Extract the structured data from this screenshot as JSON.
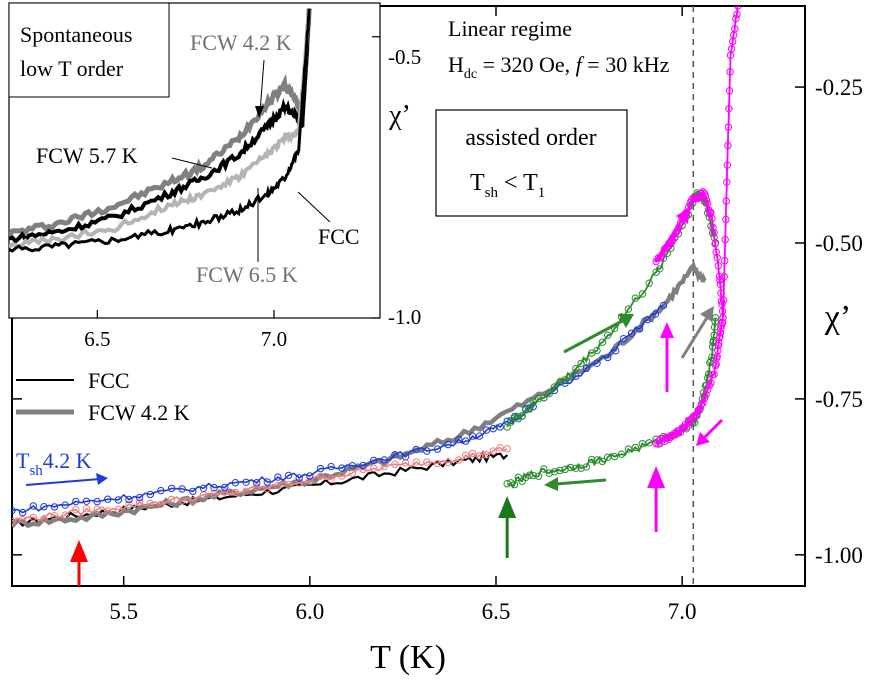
{
  "chart_data": {
    "type": "line",
    "title": "",
    "xlabel": "T (K)",
    "ylabel": "χ’",
    "xlim": [
      5.2,
      7.33
    ],
    "ylim": [
      -1.05,
      -0.12
    ],
    "y_inverted": true,
    "x_ticks": [
      5.5,
      6.0,
      6.5,
      7.0
    ],
    "x_tick_labels": [
      "5.5",
      "6.0",
      "6.5",
      "7.0"
    ],
    "y_ticks": [
      -0.25,
      -0.5,
      -0.75,
      -1.0
    ],
    "y_tick_labels": [
      "-0.25",
      "-0.50",
      "-0.75",
      "-1.00"
    ],
    "grid": false,
    "legend": {
      "placement": "left",
      "entries": [
        {
          "label": "FCC",
          "color": "#000000"
        },
        {
          "label": "FCW 4.2 K",
          "color": "#808080"
        }
      ]
    },
    "reference_line_x": 7.03,
    "annotations": {
      "regime": "Linear regime",
      "field_prefix": "H",
      "field_sub": "dc",
      "field_mid": " = 320 Oe, ",
      "field_f": "f",
      "field_suffix": " = 30 kHz",
      "box_line1": "assisted order",
      "box_line2_a": "T",
      "box_line2_sub_a": "sh",
      "box_line2_b": " < T",
      "box_line2_sub_b": "1",
      "tsh_main": "T",
      "tsh_sub": "sh",
      "tsh_value": "4.2 K"
    },
    "series": [
      {
        "name": "FCC",
        "color": "#000000",
        "x": [
          5.2,
          5.4,
          5.6,
          5.8,
          6.0,
          6.2,
          6.4,
          6.53
        ],
        "y": [
          -0.95,
          -0.935,
          -0.92,
          -0.905,
          -0.89,
          -0.87,
          -0.85,
          -0.84
        ]
      },
      {
        "name": "FCW 4.2 K",
        "color": "#808080",
        "x": [
          5.2,
          5.4,
          5.6,
          5.8,
          6.0,
          6.2,
          6.4,
          6.6,
          6.8,
          6.95,
          7.03,
          7.06
        ],
        "y": [
          -0.95,
          -0.94,
          -0.92,
          -0.9,
          -0.88,
          -0.85,
          -0.81,
          -0.75,
          -0.68,
          -0.6,
          -0.54,
          -0.56
        ]
      },
      {
        "name": "",
        "color": "#f08080",
        "x": [
          5.2,
          5.4,
          5.6,
          5.8,
          6.0,
          6.2,
          6.4,
          6.53
        ],
        "y": [
          -0.945,
          -0.93,
          -0.915,
          -0.9,
          -0.88,
          -0.86,
          -0.845,
          -0.83
        ]
      },
      {
        "name": "",
        "color": "#1e3cdc",
        "x": [
          5.2,
          5.4,
          5.6,
          5.8,
          6.0,
          6.2,
          6.4,
          6.53,
          6.6,
          6.8,
          6.95
        ],
        "y": [
          -0.93,
          -0.915,
          -0.9,
          -0.885,
          -0.87,
          -0.845,
          -0.82,
          -0.79,
          -0.76,
          -0.68,
          -0.6
        ]
      },
      {
        "name": "",
        "color": "#2e8b2e",
        "x": [
          6.53,
          6.6,
          6.7,
          6.8,
          6.93,
          7.0,
          7.04,
          7.06,
          7.08,
          7.09
        ],
        "y": [
          -0.89,
          -0.87,
          -0.86,
          -0.845,
          -0.82,
          -0.8,
          -0.78,
          -0.74,
          -0.68,
          -0.62
        ]
      },
      {
        "name": "",
        "color": "#2e8b2e",
        "x": [
          6.53,
          6.6,
          6.7,
          6.8,
          6.93,
          7.0,
          7.04,
          7.06,
          7.09
        ],
        "y": [
          -0.79,
          -0.76,
          -0.71,
          -0.65,
          -0.55,
          -0.47,
          -0.42,
          -0.43,
          -0.5
        ]
      },
      {
        "name": "",
        "color": "#ff00ff",
        "x": [
          6.93,
          6.97,
          7.0,
          7.03,
          7.06,
          7.09,
          7.1,
          7.11
        ],
        "y": [
          -0.82,
          -0.81,
          -0.8,
          -0.78,
          -0.75,
          -0.7,
          -0.65,
          -0.62
        ]
      },
      {
        "name": "",
        "color": "#ff00ff",
        "x": [
          6.93,
          6.97,
          7.0,
          7.03,
          7.06,
          7.08,
          7.1,
          7.11,
          7.12,
          7.13,
          7.15
        ],
        "y": [
          -0.53,
          -0.5,
          -0.46,
          -0.43,
          -0.42,
          -0.46,
          -0.55,
          -0.62,
          -0.4,
          -0.2,
          -0.12
        ]
      }
    ],
    "markers_x": [
      {
        "x": 5.38,
        "color": "#ff0000"
      },
      {
        "x": 6.53,
        "color": "#1a7a1a"
      },
      {
        "x": 6.93,
        "color": "#ff00ff"
      }
    ],
    "inset": {
      "title_line1": "Spontaneous",
      "title_line2": "low T order",
      "ylabel": "χ’",
      "xlim": [
        6.25,
        7.3
      ],
      "ylim": [
        -1.0,
        -0.44
      ],
      "y_inverted": true,
      "x_ticks": [
        6.5,
        7.0
      ],
      "x_tick_labels": [
        "6.5",
        "7.0"
      ],
      "y_ticks": [
        -0.5,
        -1.0
      ],
      "y_tick_labels": [
        "-0.5",
        "-1.0"
      ],
      "label_fcw42": "FCW 4.2 K",
      "label_fcw57": "FCW 5.7 K",
      "label_fcc": "FCC",
      "label_fcw65": "FCW 6.5 K",
      "series": [
        {
          "name": "FCW 4.2 K",
          "color": "#808080",
          "x": [
            6.25,
            6.4,
            6.55,
            6.7,
            6.8,
            6.9,
            6.98,
            7.03,
            7.06,
            7.08,
            7.1
          ],
          "y": [
            -0.85,
            -0.83,
            -0.8,
            -0.76,
            -0.73,
            -0.68,
            -0.62,
            -0.585,
            -0.61,
            -0.64,
            -0.45
          ]
        },
        {
          "name": "FCW 5.7 K",
          "color": "#000000",
          "x": [
            6.25,
            6.4,
            6.55,
            6.7,
            6.8,
            6.9,
            6.98,
            7.03,
            7.06,
            7.08,
            7.1
          ],
          "y": [
            -0.86,
            -0.845,
            -0.82,
            -0.78,
            -0.75,
            -0.71,
            -0.66,
            -0.625,
            -0.64,
            -0.66,
            -0.45
          ]
        },
        {
          "name": "FCW 6.5 K",
          "color": "#b4b4b4",
          "x": [
            6.25,
            6.4,
            6.55,
            6.7,
            6.8,
            6.9,
            6.98,
            7.03,
            7.07,
            7.1
          ],
          "y": [
            -0.87,
            -0.86,
            -0.84,
            -0.8,
            -0.78,
            -0.75,
            -0.71,
            -0.68,
            -0.67,
            -0.45
          ]
        },
        {
          "name": "FCC",
          "color": "#000000",
          "x": [
            6.25,
            6.4,
            6.55,
            6.7,
            6.8,
            6.9,
            6.98,
            7.03,
            7.07,
            7.1
          ],
          "y": [
            -0.88,
            -0.87,
            -0.86,
            -0.845,
            -0.83,
            -0.81,
            -0.78,
            -0.75,
            -0.7,
            -0.45
          ]
        }
      ]
    }
  }
}
